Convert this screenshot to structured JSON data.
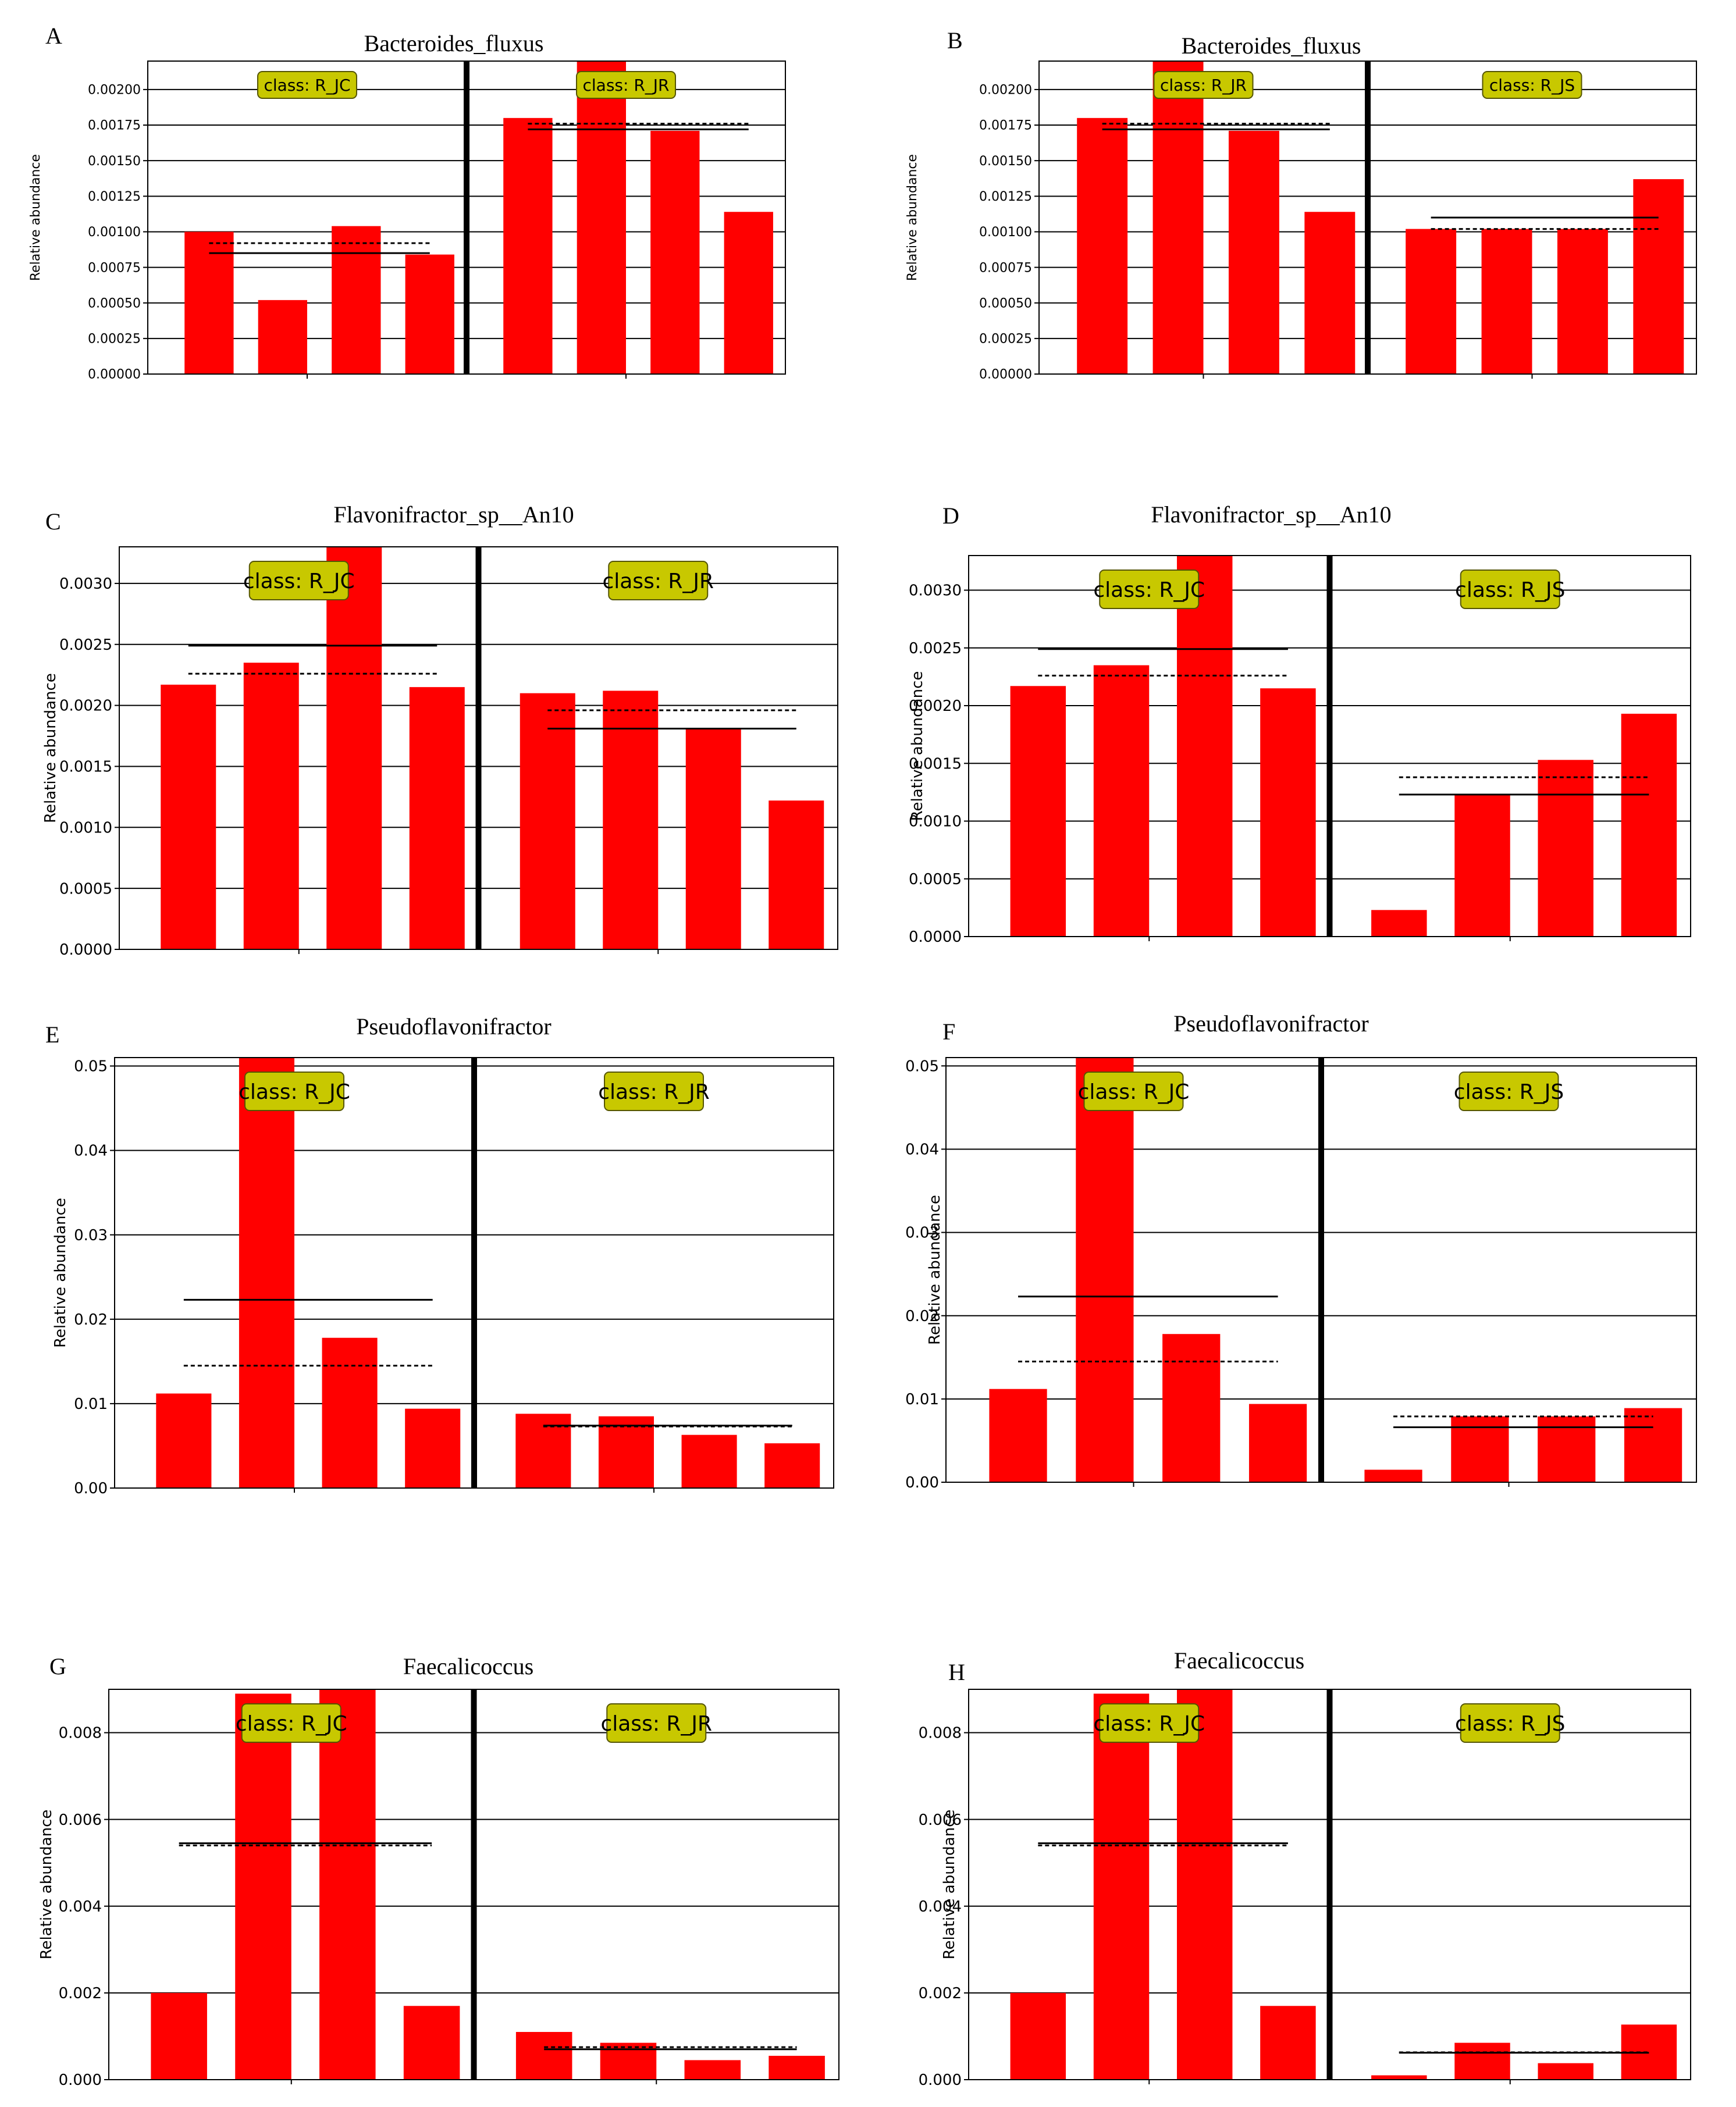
{
  "ylabel": "Relative abundance",
  "colors": {
    "bar": "#ff0000",
    "badge_fill": "#c8c800",
    "badge_stroke": "#555500",
    "line": "#000000"
  },
  "chart_data": [
    {
      "letter": "A",
      "title": "Bacteroides_fluxus",
      "type": "bar",
      "ylim": [
        0,
        0.0022
      ],
      "yticks": [
        "0.00000",
        "0.00025",
        "0.00050",
        "0.00075",
        "0.00100",
        "0.00125",
        "0.00150",
        "0.00175",
        "0.00200"
      ],
      "groups": [
        {
          "label": "class: R_JC",
          "values": [
            0.001,
            0.00052,
            0.00104,
            0.00084
          ],
          "mean": 0.00092,
          "median": 0.00085
        },
        {
          "label": "class: R_JR",
          "values": [
            0.0018,
            0.0022,
            0.00171,
            0.00114
          ],
          "mean": 0.00176,
          "median": 0.00172
        }
      ]
    },
    {
      "letter": "B",
      "title": "Bacteroides_fluxus",
      "type": "bar",
      "ylim": [
        0,
        0.0022
      ],
      "yticks": [
        "0.00000",
        "0.00025",
        "0.00050",
        "0.00075",
        "0.00100",
        "0.00125",
        "0.00150",
        "0.00175",
        "0.00200"
      ],
      "groups": [
        {
          "label": "class: R_JR",
          "values": [
            0.0018,
            0.0022,
            0.00171,
            0.00114
          ],
          "mean": 0.00176,
          "median": 0.00172
        },
        {
          "label": "class: R_JS",
          "values": [
            0.00102,
            0.00102,
            0.00102,
            0.00137
          ],
          "mean": 0.00102,
          "median": 0.0011
        }
      ]
    },
    {
      "letter": "C",
      "title": "Flavonifractor_sp__An10",
      "type": "bar",
      "ylim": [
        0,
        0.0033
      ],
      "yticks": [
        "0.0000",
        "0.0005",
        "0.0010",
        "0.0015",
        "0.0020",
        "0.0025",
        "0.0030"
      ],
      "groups": [
        {
          "label": "class: R_JC",
          "values": [
            0.00217,
            0.00235,
            0.0033,
            0.00215
          ],
          "mean": 0.00226,
          "median": 0.00249
        },
        {
          "label": "class: R_JR",
          "values": [
            0.0021,
            0.00212,
            0.00181,
            0.00122
          ],
          "mean": 0.00196,
          "median": 0.00181
        }
      ]
    },
    {
      "letter": "D",
      "title": "Flavonifractor_sp__An10",
      "type": "bar",
      "ylim": [
        0,
        0.0033
      ],
      "yticks": [
        "0.0000",
        "0.0005",
        "0.0010",
        "0.0015",
        "0.0020",
        "0.0025",
        "0.0030"
      ],
      "groups": [
        {
          "label": "class: R_JC",
          "values": [
            0.00217,
            0.00235,
            0.0033,
            0.00215
          ],
          "mean": 0.00226,
          "median": 0.00249
        },
        {
          "label": "class: R_JS",
          "values": [
            0.00023,
            0.00123,
            0.00153,
            0.00193
          ],
          "mean": 0.00138,
          "median": 0.00123
        }
      ]
    },
    {
      "letter": "E",
      "title": "Pseudoflavonifractor",
      "type": "bar",
      "ylim": [
        0,
        0.051
      ],
      "yticks": [
        "0.00",
        "0.01",
        "0.02",
        "0.03",
        "0.04",
        "0.05"
      ],
      "groups": [
        {
          "label": "class: R_JC",
          "values": [
            0.0112,
            0.051,
            0.0178,
            0.0094
          ],
          "mean": 0.0145,
          "median": 0.0223
        },
        {
          "label": "class: R_JR",
          "values": [
            0.0088,
            0.0085,
            0.0063,
            0.0053
          ],
          "mean": 0.0073,
          "median": 0.0074
        }
      ]
    },
    {
      "letter": "F",
      "title": "Pseudoflavonifractor",
      "type": "bar",
      "ylim": [
        0,
        0.051
      ],
      "yticks": [
        "0.00",
        "0.01",
        "0.02",
        "0.03",
        "0.04",
        "0.05"
      ],
      "groups": [
        {
          "label": "class: R_JC",
          "values": [
            0.0112,
            0.051,
            0.0178,
            0.0094
          ],
          "mean": 0.0145,
          "median": 0.0223
        },
        {
          "label": "class: R_JS",
          "values": [
            0.0015,
            0.0079,
            0.0079,
            0.0089
          ],
          "mean": 0.0079,
          "median": 0.0066
        }
      ]
    },
    {
      "letter": "G",
      "title": "Faecalicoccus",
      "type": "bar",
      "ylim": [
        0,
        0.009
      ],
      "yticks": [
        "0.000",
        "0.002",
        "0.004",
        "0.006",
        "0.008"
      ],
      "groups": [
        {
          "label": "class: R_JC",
          "values": [
            0.002,
            0.0089,
            0.009,
            0.0017
          ],
          "mean": 0.0054,
          "median": 0.00545
        },
        {
          "label": "class: R_JR",
          "values": [
            0.0011,
            0.00085,
            0.00045,
            0.00055
          ],
          "mean": 0.00075,
          "median": 0.0007
        }
      ]
    },
    {
      "letter": "H",
      "title": "Faecalicoccus",
      "type": "bar",
      "ylim": [
        0,
        0.009
      ],
      "yticks": [
        "0.000",
        "0.002",
        "0.004",
        "0.006",
        "0.008"
      ],
      "groups": [
        {
          "label": "class: R_JC",
          "values": [
            0.002,
            0.0089,
            0.009,
            0.0017
          ],
          "mean": 0.0054,
          "median": 0.00545
        },
        {
          "label": "class: R_JS",
          "values": [
            0.0001,
            0.00085,
            0.00038,
            0.00127
          ],
          "mean": 0.00063,
          "median": 0.00062
        }
      ]
    }
  ]
}
